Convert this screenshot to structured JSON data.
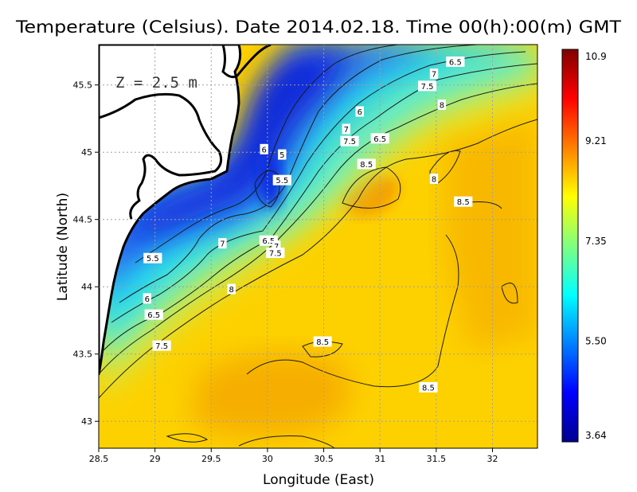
{
  "title": "Temperature (Celsius). Date 2014.02.18. Time 00(h):00(m)  GMT",
  "depth_label": "Z  =  2.5  m",
  "xlabel": "Longitude (East)",
  "ylabel": "Latitude (North)",
  "map_data": {
    "type": "heatmap",
    "variable": "Temperature",
    "xlim": [
      28.5,
      32.4
    ],
    "ylim": [
      42.8,
      45.8
    ],
    "x_ticks": [
      "28.5",
      "29",
      "29.5",
      "30",
      "30.5",
      "31",
      "31.5",
      "32"
    ],
    "x_tick_values": [
      28.5,
      29,
      29.5,
      30,
      30.5,
      31,
      31.5,
      32
    ],
    "y_ticks": [
      "43",
      "43.5",
      "44",
      "44.5",
      "45",
      "45.5"
    ],
    "y_tick_values": [
      43,
      43.5,
      44,
      44.5,
      45,
      45.5
    ],
    "grid": true,
    "colorbar": {
      "min": 3.64,
      "max": 10.9,
      "tick_labels": [
        "10.9",
        "9.21",
        "7.35",
        "5.50",
        "3.64"
      ],
      "tick_values": [
        10.9,
        9.21,
        7.35,
        5.5,
        3.64
      ],
      "colors": [
        "#00008f",
        "#0000ff",
        "#0080ff",
        "#00ffff",
        "#80ff80",
        "#ffff00",
        "#ff8000",
        "#ff0000",
        "#800000"
      ]
    },
    "land_color": "#ffffff",
    "contour_labels": [
      {
        "text": "6.5",
        "lon": 31.67,
        "lat": 45.67
      },
      {
        "text": "7",
        "lon": 31.48,
        "lat": 45.58
      },
      {
        "text": "7.5",
        "lon": 31.42,
        "lat": 45.49
      },
      {
        "text": "8",
        "lon": 31.55,
        "lat": 45.35
      },
      {
        "text": "6",
        "lon": 30.82,
        "lat": 45.3
      },
      {
        "text": "7",
        "lon": 30.7,
        "lat": 45.17
      },
      {
        "text": "6.5",
        "lon": 31.0,
        "lat": 45.1
      },
      {
        "text": "7.5",
        "lon": 30.73,
        "lat": 45.08
      },
      {
        "text": "6",
        "lon": 29.97,
        "lat": 45.02
      },
      {
        "text": "5",
        "lon": 30.13,
        "lat": 44.98
      },
      {
        "text": "8.5",
        "lon": 30.88,
        "lat": 44.91
      },
      {
        "text": "5.5",
        "lon": 30.13,
        "lat": 44.79
      },
      {
        "text": "8",
        "lon": 31.48,
        "lat": 44.8
      },
      {
        "text": "8.5",
        "lon": 31.74,
        "lat": 44.63
      },
      {
        "text": "7",
        "lon": 29.6,
        "lat": 44.32
      },
      {
        "text": "6.5",
        "lon": 30.01,
        "lat": 44.34
      },
      {
        "text": "7",
        "lon": 30.08,
        "lat": 44.3
      },
      {
        "text": "7.5",
        "lon": 30.07,
        "lat": 44.25
      },
      {
        "text": "5.5",
        "lon": 28.98,
        "lat": 44.21
      },
      {
        "text": "8",
        "lon": 29.68,
        "lat": 43.98
      },
      {
        "text": "6",
        "lon": 28.93,
        "lat": 43.91
      },
      {
        "text": "6.5",
        "lon": 28.99,
        "lat": 43.79
      },
      {
        "text": "7.5",
        "lon": 29.06,
        "lat": 43.56
      },
      {
        "text": "8.5",
        "lon": 30.49,
        "lat": 43.59
      },
      {
        "text": "8.5",
        "lon": 31.43,
        "lat": 43.25
      }
    ]
  }
}
